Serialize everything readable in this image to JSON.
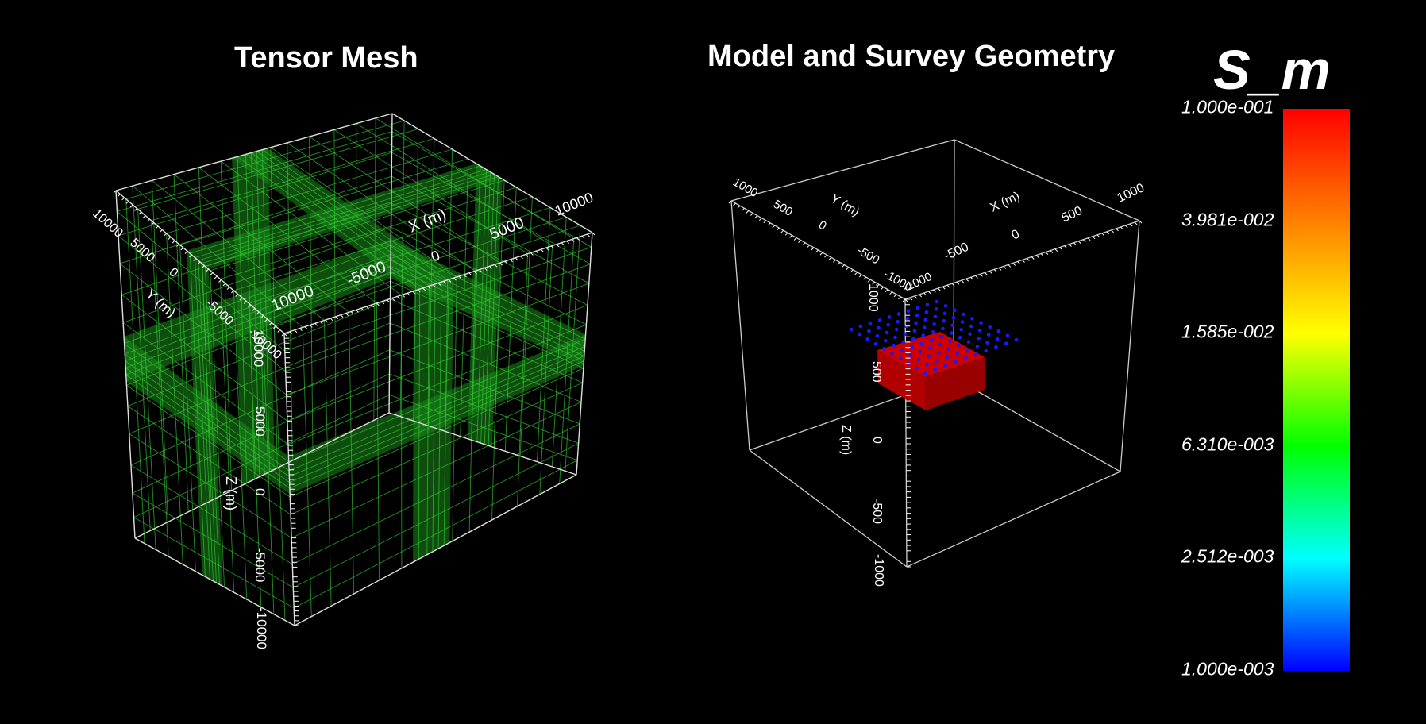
{
  "panels": {
    "left_title": "Tensor Mesh",
    "right_title": "Model and Survey Geometry"
  },
  "tensor_mesh": {
    "axis_x_label": "X (m)",
    "axis_y_label": "Y (m)",
    "axis_z_label": "Z (m)",
    "x_ticks": [
      "10000",
      "5000",
      "0",
      "-5000",
      "-10000"
    ],
    "y_ticks": [
      "10000",
      "5000",
      "0",
      "-5000",
      "-10000"
    ],
    "z_ticks": [
      "10000",
      "5000",
      "0",
      "-5000",
      "-10000"
    ],
    "mesh_color": "#33cc33",
    "fill_color": "#1a8c1a"
  },
  "survey_geometry": {
    "axis_x_label": "X (m)",
    "axis_y_label": "Y (m)",
    "axis_z_label": "Z (m)",
    "x_ticks": [
      "1000",
      "500",
      "0",
      "-500",
      "-1000"
    ],
    "y_ticks": [
      "1000",
      "500",
      "0",
      "-500",
      "-1000"
    ],
    "z_ticks": [
      "1000",
      "500",
      "0",
      "-500",
      "-1000"
    ],
    "block_color": "#cc0000",
    "receiver_color": "#1a1aff"
  },
  "colorbar": {
    "title": "S_m",
    "labels": [
      "1.000e-001",
      "3.981e-002",
      "1.585e-002",
      "6.310e-003",
      "2.512e-003",
      "1.000e-003"
    ],
    "colors": [
      "#ff0000",
      "#ff8000",
      "#ffff00",
      "#00ff00",
      "#00ffff",
      "#0000ff"
    ]
  }
}
